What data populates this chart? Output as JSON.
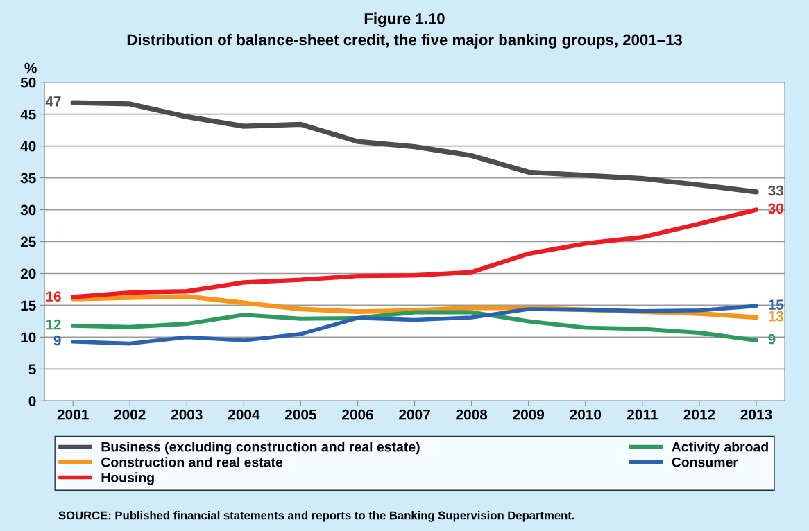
{
  "chart_data": {
    "type": "line",
    "title": "Figure 1.10",
    "subtitle": "Distribution of balance-sheet credit, the five major banking groups, 2001–13",
    "ylabel": "%",
    "categories": [
      "2001",
      "2002",
      "2003",
      "2004",
      "2005",
      "2006",
      "2007",
      "2008",
      "2009",
      "2010",
      "2011",
      "2012",
      "2013"
    ],
    "series": [
      {
        "name": "Business (excluding construction and real estate)",
        "color": "#4d4d4f",
        "values": [
          46.8,
          46.6,
          44.6,
          43.1,
          43.4,
          40.7,
          39.9,
          38.5,
          35.9,
          35.4,
          34.9,
          33.9,
          32.8
        ]
      },
      {
        "name": "Construction and real estate",
        "color": "#f7961d",
        "values": [
          16.0,
          16.2,
          16.4,
          15.4,
          14.4,
          14.0,
          14.2,
          14.6,
          14.6,
          14.3,
          14.0,
          13.7,
          13.1
        ]
      },
      {
        "name": "Housing",
        "color": "#ec1c24",
        "values": [
          16.3,
          17.0,
          17.2,
          18.6,
          19.0,
          19.6,
          19.7,
          20.2,
          23.1,
          24.7,
          25.7,
          27.8,
          30.0
        ]
      },
      {
        "name": "Activity abroad",
        "color": "#2e9a62",
        "values": [
          11.8,
          11.6,
          12.1,
          13.5,
          12.9,
          13.0,
          13.9,
          13.9,
          12.5,
          11.5,
          11.3,
          10.7,
          9.5
        ]
      },
      {
        "name": "Consumer",
        "color": "#2b62b0",
        "values": [
          9.3,
          9.0,
          10.0,
          9.5,
          10.5,
          13.0,
          12.7,
          13.1,
          14.4,
          14.3,
          14.1,
          14.2,
          14.9
        ]
      }
    ],
    "ylim": [
      0,
      50
    ],
    "yticks": [
      0,
      5,
      10,
      15,
      20,
      25,
      30,
      35,
      40,
      45,
      50
    ],
    "grid": "y",
    "legend": "bottom",
    "marker": "none",
    "line_style": "solid",
    "annotations": [
      {
        "text": "47",
        "x": "2001",
        "y": 46.8
      },
      {
        "text": "16",
        "x": "2001",
        "y": 16.2
      },
      {
        "text": "12",
        "x": "2001",
        "y": 11.8
      },
      {
        "text": "9",
        "x": "2001",
        "y": 9.3
      },
      {
        "text": "33",
        "x": "2013",
        "y": 32.8
      },
      {
        "text": "30",
        "x": "2013",
        "y": 30.0
      },
      {
        "text": "15",
        "x": "2013",
        "y": 14.9
      },
      {
        "text": "13",
        "x": "2013",
        "y": 13.1
      },
      {
        "text": "9",
        "x": "2013",
        "y": 9.5
      },
      "SOURCE: Published financial statements and reports to the Banking Supervision Department."
    ]
  }
}
